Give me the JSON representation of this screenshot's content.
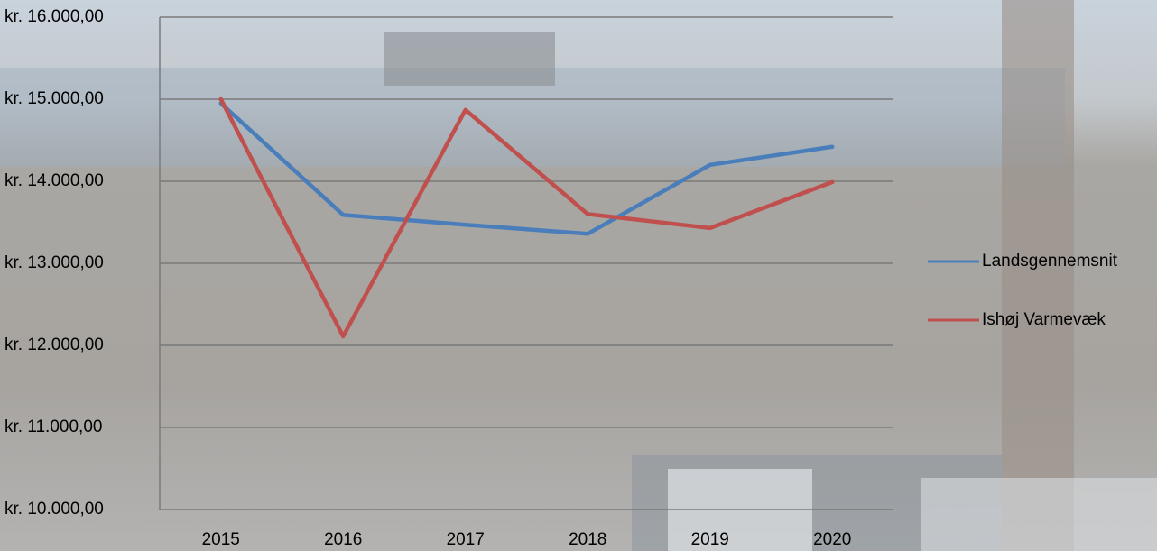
{
  "chart_data": {
    "type": "line",
    "categories": [
      "2015",
      "2016",
      "2017",
      "2018",
      "2019",
      "2020"
    ],
    "series": [
      {
        "name": "Landsgennemsnit",
        "color": "#4a7ebb",
        "values": [
          14950,
          13590,
          13470,
          13360,
          14200,
          14420
        ]
      },
      {
        "name": "Ishøj Varmevæk",
        "color": "#c0504d",
        "values": [
          15000,
          12110,
          14870,
          13600,
          13430,
          13990
        ]
      }
    ],
    "ylim": [
      10000,
      16000
    ],
    "yticks": [
      {
        "value": 10000,
        "label": "kr. 10.000,00"
      },
      {
        "value": 11000,
        "label": "kr. 11.000,00"
      },
      {
        "value": 12000,
        "label": "kr. 12.000,00"
      },
      {
        "value": 13000,
        "label": "kr. 13.000,00"
      },
      {
        "value": 14000,
        "label": "kr. 14.000,00"
      },
      {
        "value": 15000,
        "label": "kr. 15.000,00"
      },
      {
        "value": 16000,
        "label": "kr. 16.000,00"
      }
    ],
    "grid": true,
    "legend": "right"
  }
}
